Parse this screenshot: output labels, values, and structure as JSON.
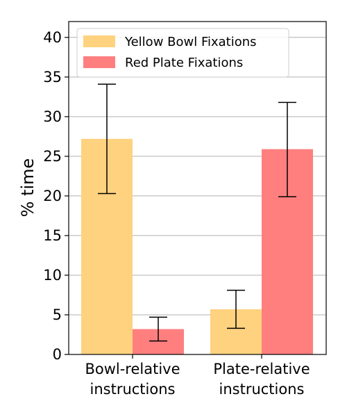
{
  "chart_data": {
    "type": "bar",
    "title": "",
    "xlabel": "",
    "ylabel": "% time",
    "ylim": [
      0,
      42
    ],
    "yticks": [
      0,
      5,
      10,
      15,
      20,
      25,
      30,
      35,
      40
    ],
    "grid": "y",
    "legend_position": "top-left",
    "categories": [
      [
        "Bowl-relative",
        "instructions"
      ],
      [
        "Plate-relative",
        "instructions"
      ]
    ],
    "series": [
      {
        "name": "Yellow Bowl Fixations",
        "color": "#ffd27f",
        "values": [
          27.2,
          5.7
        ],
        "error_low": [
          20.3,
          3.3
        ],
        "error_high": [
          34.1,
          8.1
        ]
      },
      {
        "name": "Red Plate Fixations",
        "color": "#ff7f7f",
        "values": [
          3.2,
          25.9
        ],
        "error_low": [
          1.7,
          19.9
        ],
        "error_high": [
          4.7,
          31.8
        ]
      }
    ]
  }
}
